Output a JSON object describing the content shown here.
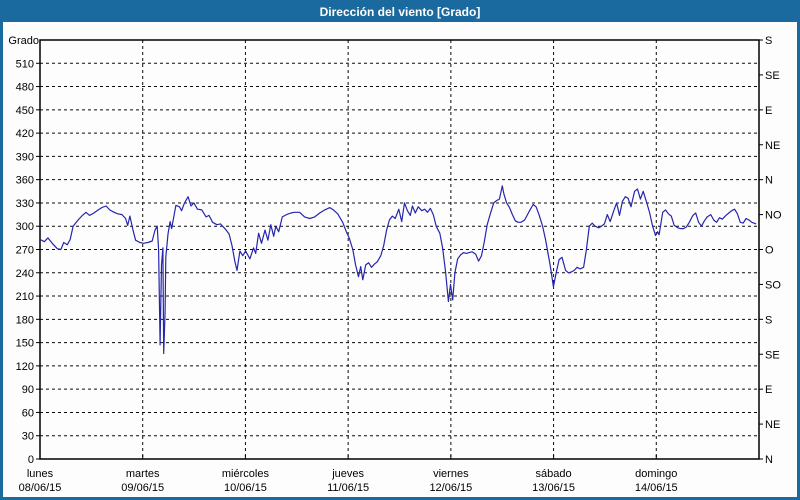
{
  "window": {
    "title": "Dirección del viento [Grado]"
  },
  "colors": {
    "title_bar_bg": "#1b6a9f",
    "title_text": "#ffffff",
    "window_border": "#1b6a9f",
    "plot_bg": "#fdfdfd",
    "grid": "#0a0a0a",
    "axis": "#000000",
    "label": "#000000",
    "line": "#2626ad"
  },
  "chart_data": {
    "type": "line",
    "title": "Dirección del viento [Grado]",
    "ylim": [
      0,
      540
    ],
    "grid": {
      "horizontal_dashed": true,
      "vertical_dashed": true,
      "legend": "none"
    },
    "y_left": {
      "label": "Grado",
      "min": 0,
      "max": 540,
      "tick_step": 30,
      "ticks": [
        0,
        30,
        60,
        90,
        120,
        150,
        180,
        210,
        240,
        270,
        300,
        330,
        360,
        390,
        420,
        450,
        480,
        510
      ]
    },
    "y_right": {
      "tick_step": 45,
      "ticks": [
        {
          "value": 0,
          "label": "N"
        },
        {
          "value": 45,
          "label": "NE"
        },
        {
          "value": 90,
          "label": "E"
        },
        {
          "value": 135,
          "label": "SE"
        },
        {
          "value": 180,
          "label": "S"
        },
        {
          "value": 225,
          "label": "SO"
        },
        {
          "value": 270,
          "label": "O"
        },
        {
          "value": 315,
          "label": "NO"
        },
        {
          "value": 360,
          "label": "N"
        },
        {
          "value": 405,
          "label": "NE"
        },
        {
          "value": 450,
          "label": "E"
        },
        {
          "value": 495,
          "label": "SE"
        },
        {
          "value": 540,
          "label": "S"
        }
      ]
    },
    "x_axis": {
      "days": [
        {
          "name": "lunes",
          "date": "08/06/15"
        },
        {
          "name": "martes",
          "date": "09/06/15"
        },
        {
          "name": "miércoles",
          "date": "10/06/15"
        },
        {
          "name": "jueves",
          "date": "11/06/15"
        },
        {
          "name": "viernes",
          "date": "12/06/15"
        },
        {
          "name": "sábado",
          "date": "13/06/15"
        },
        {
          "name": "domingo",
          "date": "14/06/15"
        }
      ]
    },
    "series": [
      {
        "name": "Dirección del viento",
        "color": "#2626ad",
        "points": [
          [
            0.0,
            283
          ],
          [
            0.006,
            280
          ],
          [
            0.011,
            285
          ],
          [
            0.017,
            278
          ],
          [
            0.024,
            271
          ],
          [
            0.029,
            270
          ],
          [
            0.033,
            279
          ],
          [
            0.038,
            276
          ],
          [
            0.042,
            283
          ],
          [
            0.046,
            300
          ],
          [
            0.053,
            308
          ],
          [
            0.058,
            313
          ],
          [
            0.064,
            318
          ],
          [
            0.069,
            314
          ],
          [
            0.075,
            317
          ],
          [
            0.081,
            321
          ],
          [
            0.086,
            324
          ],
          [
            0.092,
            326
          ],
          [
            0.097,
            321
          ],
          [
            0.103,
            318
          ],
          [
            0.108,
            316
          ],
          [
            0.114,
            315
          ],
          [
            0.119,
            310
          ],
          [
            0.122,
            301
          ],
          [
            0.125,
            313
          ],
          [
            0.129,
            296
          ],
          [
            0.133,
            282
          ],
          [
            0.139,
            279
          ],
          [
            0.144,
            278
          ],
          [
            0.15,
            279
          ],
          [
            0.156,
            281
          ],
          [
            0.16,
            295
          ],
          [
            0.163,
            300
          ],
          [
            0.164,
            285
          ],
          [
            0.165,
            270
          ],
          [
            0.167,
            147
          ],
          [
            0.168,
            200
          ],
          [
            0.169,
            250
          ],
          [
            0.171,
            272
          ],
          [
            0.172,
            136
          ],
          [
            0.174,
            190
          ],
          [
            0.175,
            260
          ],
          [
            0.178,
            290
          ],
          [
            0.181,
            306
          ],
          [
            0.183,
            297
          ],
          [
            0.189,
            327
          ],
          [
            0.194,
            325
          ],
          [
            0.197,
            320
          ],
          [
            0.201,
            330
          ],
          [
            0.206,
            338
          ],
          [
            0.21,
            326
          ],
          [
            0.214,
            330
          ],
          [
            0.219,
            322
          ],
          [
            0.225,
            321
          ],
          [
            0.231,
            312
          ],
          [
            0.235,
            314
          ],
          [
            0.24,
            305
          ],
          [
            0.246,
            302
          ],
          [
            0.251,
            303
          ],
          [
            0.258,
            296
          ],
          [
            0.263,
            290
          ],
          [
            0.267,
            275
          ],
          [
            0.271,
            255
          ],
          [
            0.274,
            243
          ],
          [
            0.278,
            268
          ],
          [
            0.282,
            262
          ],
          [
            0.286,
            268
          ],
          [
            0.292,
            258
          ],
          [
            0.297,
            272
          ],
          [
            0.3,
            265
          ],
          [
            0.304,
            291
          ],
          [
            0.308,
            278
          ],
          [
            0.313,
            295
          ],
          [
            0.317,
            282
          ],
          [
            0.321,
            302
          ],
          [
            0.325,
            287
          ],
          [
            0.328,
            300
          ],
          [
            0.332,
            293
          ],
          [
            0.337,
            312
          ],
          [
            0.343,
            315
          ],
          [
            0.349,
            317
          ],
          [
            0.354,
            318
          ],
          [
            0.361,
            318
          ],
          [
            0.368,
            312
          ],
          [
            0.375,
            310
          ],
          [
            0.382,
            312
          ],
          [
            0.389,
            317
          ],
          [
            0.396,
            321
          ],
          [
            0.403,
            324
          ],
          [
            0.408,
            321
          ],
          [
            0.414,
            316
          ],
          [
            0.421,
            305
          ],
          [
            0.426,
            293
          ],
          [
            0.43,
            285
          ],
          [
            0.435,
            270
          ],
          [
            0.439,
            250
          ],
          [
            0.443,
            235
          ],
          [
            0.446,
            248
          ],
          [
            0.449,
            231
          ],
          [
            0.453,
            250
          ],
          [
            0.457,
            253
          ],
          [
            0.461,
            247
          ],
          [
            0.465,
            251
          ],
          [
            0.469,
            254
          ],
          [
            0.474,
            262
          ],
          [
            0.478,
            275
          ],
          [
            0.482,
            295
          ],
          [
            0.486,
            308
          ],
          [
            0.49,
            313
          ],
          [
            0.494,
            310
          ],
          [
            0.499,
            322
          ],
          [
            0.503,
            306
          ],
          [
            0.507,
            330
          ],
          [
            0.511,
            320
          ],
          [
            0.515,
            314
          ],
          [
            0.518,
            326
          ],
          [
            0.522,
            317
          ],
          [
            0.526,
            325
          ],
          [
            0.531,
            320
          ],
          [
            0.535,
            322
          ],
          [
            0.539,
            318
          ],
          [
            0.543,
            323
          ],
          [
            0.547,
            315
          ],
          [
            0.551,
            300
          ],
          [
            0.556,
            291
          ],
          [
            0.56,
            272
          ],
          [
            0.564,
            242
          ],
          [
            0.568,
            203
          ],
          [
            0.571,
            225
          ],
          [
            0.574,
            205
          ],
          [
            0.577,
            240
          ],
          [
            0.581,
            258
          ],
          [
            0.585,
            263
          ],
          [
            0.589,
            266
          ],
          [
            0.593,
            265
          ],
          [
            0.597,
            266
          ],
          [
            0.601,
            267
          ],
          [
            0.606,
            264
          ],
          [
            0.61,
            255
          ],
          [
            0.614,
            262
          ],
          [
            0.618,
            280
          ],
          [
            0.622,
            302
          ],
          [
            0.626,
            315
          ],
          [
            0.631,
            330
          ],
          [
            0.635,
            333
          ],
          [
            0.639,
            335
          ],
          [
            0.643,
            352
          ],
          [
            0.645,
            342
          ],
          [
            0.649,
            330
          ],
          [
            0.653,
            324
          ],
          [
            0.657,
            315
          ],
          [
            0.661,
            307
          ],
          [
            0.665,
            305
          ],
          [
            0.669,
            305
          ],
          [
            0.674,
            308
          ],
          [
            0.678,
            315
          ],
          [
            0.682,
            322
          ],
          [
            0.686,
            328
          ],
          [
            0.69,
            325
          ],
          [
            0.694,
            315
          ],
          [
            0.699,
            300
          ],
          [
            0.703,
            283
          ],
          [
            0.707,
            263
          ],
          [
            0.71,
            247
          ],
          [
            0.714,
            222
          ],
          [
            0.718,
            240
          ],
          [
            0.722,
            257
          ],
          [
            0.726,
            260
          ],
          [
            0.731,
            243
          ],
          [
            0.735,
            240
          ],
          [
            0.739,
            241
          ],
          [
            0.743,
            243
          ],
          [
            0.747,
            247
          ],
          [
            0.751,
            245
          ],
          [
            0.756,
            247
          ],
          [
            0.76,
            270
          ],
          [
            0.764,
            300
          ],
          [
            0.768,
            304
          ],
          [
            0.772,
            300
          ],
          [
            0.777,
            298
          ],
          [
            0.781,
            300
          ],
          [
            0.785,
            303
          ],
          [
            0.789,
            315
          ],
          [
            0.793,
            306
          ],
          [
            0.798,
            320
          ],
          [
            0.802,
            330
          ],
          [
            0.806,
            314
          ],
          [
            0.81,
            332
          ],
          [
            0.814,
            338
          ],
          [
            0.818,
            336
          ],
          [
            0.822,
            325
          ],
          [
            0.827,
            345
          ],
          [
            0.831,
            348
          ],
          [
            0.835,
            335
          ],
          [
            0.839,
            345
          ],
          [
            0.844,
            330
          ],
          [
            0.848,
            317
          ],
          [
            0.852,
            300
          ],
          [
            0.856,
            288
          ],
          [
            0.859,
            293
          ],
          [
            0.861,
            289
          ],
          [
            0.866,
            318
          ],
          [
            0.87,
            321
          ],
          [
            0.874,
            316
          ],
          [
            0.878,
            313
          ],
          [
            0.882,
            301
          ],
          [
            0.887,
            298
          ],
          [
            0.891,
            297
          ],
          [
            0.895,
            297
          ],
          [
            0.899,
            299
          ],
          [
            0.903,
            305
          ],
          [
            0.908,
            314
          ],
          [
            0.912,
            317
          ],
          [
            0.916,
            305
          ],
          [
            0.92,
            300
          ],
          [
            0.924,
            307
          ],
          [
            0.928,
            312
          ],
          [
            0.933,
            315
          ],
          [
            0.937,
            308
          ],
          [
            0.941,
            305
          ],
          [
            0.945,
            311
          ],
          [
            0.949,
            309
          ],
          [
            0.954,
            314
          ],
          [
            0.958,
            317
          ],
          [
            0.962,
            320
          ],
          [
            0.966,
            322
          ],
          [
            0.97,
            316
          ],
          [
            0.974,
            305
          ],
          [
            0.978,
            304
          ],
          [
            0.982,
            310
          ],
          [
            0.986,
            308
          ],
          [
            0.99,
            305
          ],
          [
            0.996,
            303
          ]
        ]
      }
    ]
  }
}
